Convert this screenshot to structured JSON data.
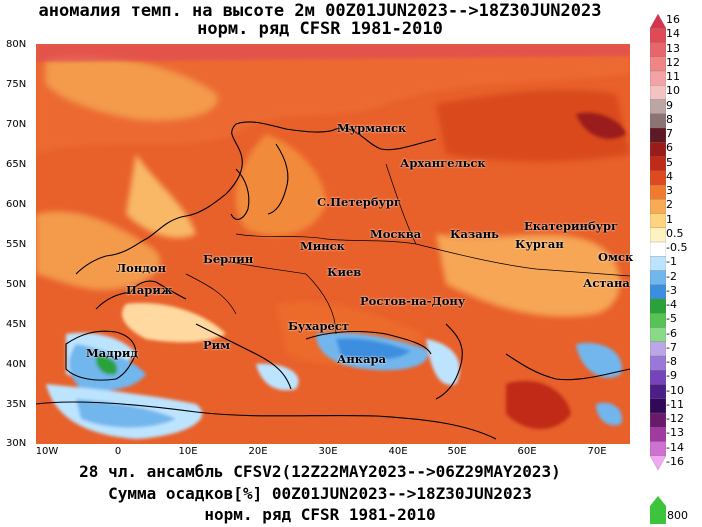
{
  "title": {
    "line1": "аномалия темп. на высоте 2м 00Z01JUN2023-->18Z30JUN2023",
    "line2": "норм. ряд CFSR 1981-2010"
  },
  "bottom": {
    "line1": "28 чл. ансамбль CFSV2(12Z22MAY2023-->06Z29MAY2023)",
    "line2": "Сумма осадков[%] 00Z01JUN2023-->18Z30JUN2023",
    "line3": "норм. ряд CFSR 1981-2010"
  },
  "lat_labels": [
    "80N",
    "75N",
    "70N",
    "65N",
    "60N",
    "55N",
    "50N",
    "45N",
    "40N",
    "35N",
    "30N"
  ],
  "lon_labels": [
    "10W",
    "0",
    "10E",
    "20E",
    "30E",
    "40E",
    "50E",
    "60E",
    "70E"
  ],
  "cities": [
    "Мурманск",
    "Архангельск",
    "С.Петербург",
    "Москва",
    "Казань",
    "Екатеринбург",
    "Курган",
    "Омск",
    "Минск",
    "Берлин",
    "Лондон",
    "Париж",
    "Киев",
    "Астана",
    "Ростов-на-Дону",
    "Бухарест",
    "Мадрид",
    "Рим",
    "Анкара"
  ],
  "legend": {
    "labels": [
      "16",
      "14",
      "13",
      "12",
      "11",
      "10",
      "9",
      "8",
      "7",
      "6",
      "5",
      "4",
      "3",
      "2",
      "1",
      "0.5",
      "-0.5",
      "-1",
      "-2",
      "-3",
      "-4",
      "-5",
      "-6",
      "-7",
      "-8",
      "-9",
      "-10",
      "-11",
      "-12",
      "-13",
      "-14",
      "-16"
    ],
    "colors": [
      "#d7344b",
      "#e04a56",
      "#e8666b",
      "#ef8585",
      "#f3a3a3",
      "#f5c2c2",
      "#bba5a5",
      "#8c7474",
      "#5e1a24",
      "#9a1c1a",
      "#c02a18",
      "#de4a1e",
      "#f07a2e",
      "#f8aa55",
      "#ffd47e",
      "#fff2c0",
      "#ffffff",
      "#bde4ff",
      "#72b6ee",
      "#3c8ede",
      "#2aa23a",
      "#55c455",
      "#88da88",
      "#bba7e8",
      "#9a78d8",
      "#7444b8",
      "#4c1e88",
      "#300a58",
      "#6a1a6a",
      "#a03aa0",
      "#d070d0",
      "#f0a8f0"
    ],
    "precip_label": "800",
    "precip_color": "#3cc43c"
  }
}
